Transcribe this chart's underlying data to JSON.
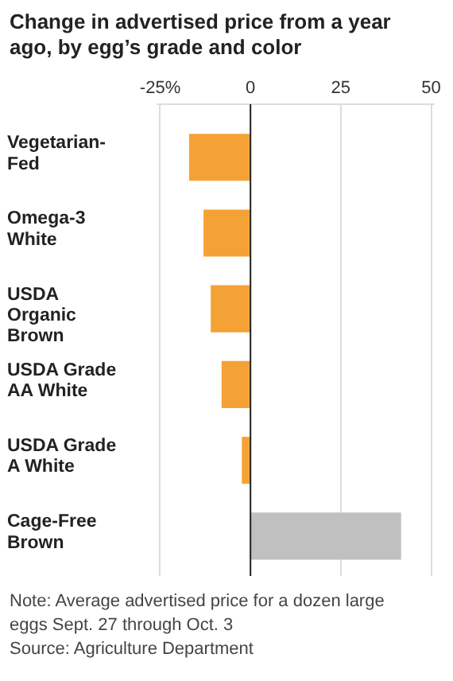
{
  "chart_data": {
    "type": "bar",
    "orientation": "horizontal",
    "title": "Change in advertised price from a year ago, by egg’s grade and color",
    "categories": [
      "Vegetarian-Fed",
      "Omega-3 White",
      "USDA Organic Brown",
      "USDA Grade AA White",
      "USDA Grade A White",
      "Cage-Free Brown"
    ],
    "values": [
      -17,
      -13,
      -11,
      -8,
      -2.4,
      41.7
    ],
    "colors": [
      "#f4a235",
      "#f4a235",
      "#f4a235",
      "#f4a235",
      "#f4a235",
      "#c0c0c0"
    ],
    "xlim": [
      -26,
      51
    ],
    "xticks": [
      {
        "value": -25,
        "label": "-25%"
      },
      0,
      25,
      50
    ],
    "grid": "x",
    "annotations": [
      "Note: Average advertised price for a dozen large eggs Sept. 27 through Oct. 3",
      "Source: Agriculture Department"
    ]
  }
}
